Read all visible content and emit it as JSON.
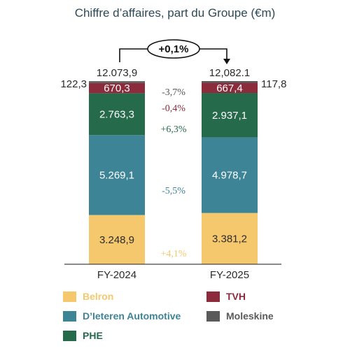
{
  "chart_data": {
    "type": "bar",
    "title": "Chiffre d’affaires, part du Groupe (€m)",
    "categories": [
      "FY-2024",
      "FY-2025"
    ],
    "totals": [
      "12.073,9",
      "12,082.1"
    ],
    "change_badge": "+0,1%",
    "series": [
      {
        "name": "Belron",
        "values": [
          3248.9,
          3381.2
        ],
        "labels": [
          "3.248,9",
          "3.381,2"
        ],
        "change": "+4,1%",
        "color": "#F6C86E",
        "text_color": "#2b2b2b",
        "pct_color": "#F6C86E"
      },
      {
        "name": "D’Ieteren Automotive",
        "values": [
          5269.1,
          4978.7
        ],
        "labels": [
          "5.269,1",
          "4.978,7"
        ],
        "change": "-5,5%",
        "color": "#3E8497",
        "text_color": "#ffffff",
        "pct_color": "#3E8497"
      },
      {
        "name": "PHE",
        "values": [
          2763.3,
          2937.1
        ],
        "labels": [
          "2.763,3",
          "2.937,1"
        ],
        "change": "+6,3%",
        "color": "#256A4A",
        "text_color": "#ffffff",
        "pct_color": "#256A4A"
      },
      {
        "name": "TVH",
        "values": [
          670.3,
          667.4
        ],
        "labels": [
          "670,3",
          "667,4"
        ],
        "change": "-0,4%",
        "color": "#8C2B3C",
        "text_color": "#ffffff",
        "pct_color": "#8C2B3C"
      },
      {
        "name": "Moleskine",
        "values": [
          122.3,
          117.8
        ],
        "labels": [
          "122,3",
          "117,8"
        ],
        "change": "-3,7%",
        "color": "#5A5A5A",
        "text_color": "#2b2b2b",
        "pct_color": "#555555"
      }
    ],
    "legend": [
      {
        "name": "Belron",
        "color": "#F6C86E"
      },
      {
        "name": "TVH",
        "color": "#8C2B3C"
      },
      {
        "name": "D’Ieteren Automotive",
        "color": "#3E8497"
      },
      {
        "name": "Moleskine",
        "color": "#5A5A5A"
      },
      {
        "name": "PHE",
        "color": "#256A4A"
      }
    ],
    "title_color": "#2E4A57"
  }
}
